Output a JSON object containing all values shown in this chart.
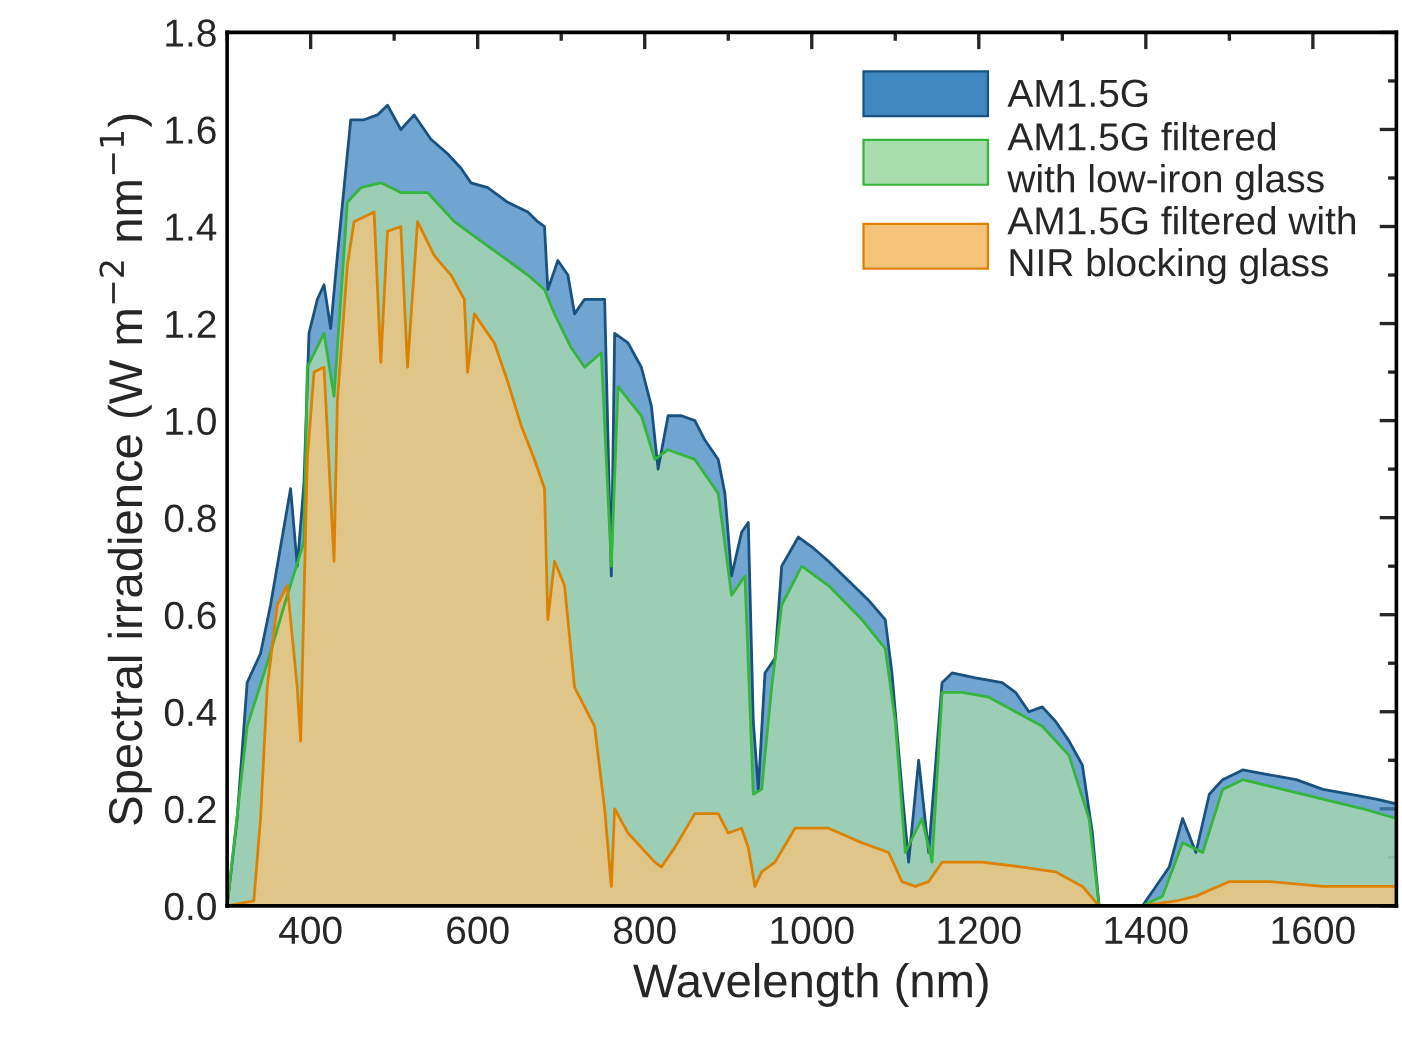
{
  "chart_data": {
    "type": "area",
    "xlabel": "Wavelength (nm)",
    "ylabel": "Spectral irradience (W m$^{−2}$ nm$^{−1}$)",
    "xlim": [
      300,
      1700
    ],
    "ylim": [
      0,
      1.8
    ],
    "xticks": [
      400,
      600,
      800,
      1000,
      1200,
      1400,
      1600
    ],
    "yticks": [
      {
        "value": 0,
        "label": "0.0"
      },
      {
        "value": 0.2,
        "label": "0.2"
      },
      {
        "value": 0.4,
        "label": "0.4"
      },
      {
        "value": 0.6,
        "label": "0.6"
      },
      {
        "value": 0.8,
        "label": "0.8"
      },
      {
        "value": 1.0,
        "label": "1.0"
      },
      {
        "value": 1.2,
        "label": "1.2"
      },
      {
        "value": 1.4,
        "label": "1.4"
      },
      {
        "value": 1.6,
        "label": "1.6"
      },
      {
        "value": 1.8,
        "label": "1.8"
      }
    ],
    "grid": false,
    "legend": "top right",
    "series": [
      {
        "name": "AM1.5G",
        "color": "#3f87c0",
        "x": [
          300,
          312,
          324,
          340,
          352,
          364,
          376,
          384,
          392,
          398,
          408,
          416,
          424,
          432,
          444,
          448,
          464,
          480,
          492,
          508,
          524,
          544,
          564,
          580,
          592,
          612,
          636,
          660,
          672,
          680,
          684,
          696,
          708,
          716,
          728,
          736,
          752,
          760,
          764,
          780,
          796,
          808,
          816,
          828,
          844,
          860,
          872,
          888,
          896,
          904,
          916,
          924,
          930,
          936,
          944,
          956,
          964,
          984,
          1000,
          1020,
          1044,
          1068,
          1088,
          1096,
          1108,
          1116,
          1128,
          1140,
          1156,
          1168,
          1196,
          1228,
          1244,
          1260,
          1276,
          1292,
          1308,
          1324,
          1336,
          1344,
          1396,
          1412,
          1428,
          1444,
          1460,
          1476,
          1492,
          1516,
          1548,
          1580,
          1612,
          1644,
          1676,
          1700
        ],
        "values": [
          0,
          0.18,
          0.46,
          0.52,
          0.62,
          0.74,
          0.86,
          0.7,
          0.87,
          1.18,
          1.25,
          1.28,
          1.19,
          1.34,
          1.55,
          1.62,
          1.62,
          1.63,
          1.65,
          1.6,
          1.63,
          1.58,
          1.55,
          1.52,
          1.49,
          1.48,
          1.45,
          1.43,
          1.41,
          1.4,
          1.27,
          1.33,
          1.3,
          1.22,
          1.25,
          1.25,
          1.25,
          0.68,
          1.18,
          1.16,
          1.11,
          1.03,
          0.9,
          1.01,
          1.01,
          1.0,
          0.96,
          0.92,
          0.85,
          0.68,
          0.77,
          0.79,
          0.38,
          0.24,
          0.48,
          0.51,
          0.7,
          0.76,
          0.74,
          0.71,
          0.67,
          0.63,
          0.59,
          0.48,
          0.24,
          0.09,
          0.3,
          0.11,
          0.46,
          0.48,
          0.47,
          0.46,
          0.44,
          0.4,
          0.41,
          0.38,
          0.34,
          0.29,
          0.15,
          0,
          0,
          0.04,
          0.08,
          0.18,
          0.11,
          0.23,
          0.26,
          0.28,
          0.27,
          0.26,
          0.24,
          0.23,
          0.22,
          0.21
        ]
      },
      {
        "name": "AM1.5G filtered\nwith low-iron glass",
        "color": "#a9dcac",
        "x": [
          300,
          324,
          348,
          372,
          392,
          396,
          416,
          428,
          436,
          444,
          460,
          484,
          508,
          540,
          572,
          604,
          636,
          660,
          680,
          692,
          712,
          728,
          748,
          760,
          768,
          796,
          812,
          828,
          860,
          888,
          904,
          920,
          930,
          940,
          952,
          964,
          988,
          1020,
          1060,
          1088,
          1100,
          1112,
          1132,
          1144,
          1156,
          1180,
          1212,
          1244,
          1276,
          1308,
          1332,
          1344,
          1396,
          1420,
          1444,
          1468,
          1492,
          1516,
          1564,
          1612,
          1660,
          1700
        ],
        "values": [
          0,
          0.37,
          0.5,
          0.64,
          0.75,
          1.11,
          1.18,
          1.05,
          1.25,
          1.45,
          1.48,
          1.49,
          1.47,
          1.47,
          1.41,
          1.37,
          1.33,
          1.3,
          1.27,
          1.22,
          1.15,
          1.11,
          1.14,
          0.7,
          1.07,
          1.01,
          0.92,
          0.94,
          0.92,
          0.85,
          0.64,
          0.68,
          0.23,
          0.24,
          0.45,
          0.62,
          0.7,
          0.66,
          0.59,
          0.53,
          0.38,
          0.11,
          0.18,
          0.09,
          0.44,
          0.44,
          0.43,
          0.4,
          0.37,
          0.31,
          0.18,
          0,
          0,
          0.02,
          0.13,
          0.11,
          0.24,
          0.26,
          0.24,
          0.22,
          0.2,
          0.18
        ]
      },
      {
        "name": "AM1.5G filtered with\nNIR blocking glass",
        "color": "#f5c27a",
        "x": [
          300,
          332,
          340,
          348,
          360,
          372,
          384,
          388,
          396,
          404,
          416,
          428,
          432,
          444,
          452,
          476,
          484,
          492,
          508,
          516,
          528,
          548,
          568,
          584,
          588,
          596,
          620,
          636,
          652,
          668,
          680,
          684,
          692,
          704,
          716,
          728,
          740,
          752,
          760,
          764,
          780,
          812,
          820,
          836,
          860,
          888,
          900,
          916,
          924,
          932,
          940,
          956,
          980,
          1020,
          1060,
          1092,
          1108,
          1124,
          1140,
          1156,
          1204,
          1252,
          1292,
          1324,
          1344,
          1396,
          1436,
          1460,
          1500,
          1548,
          1612,
          1700
        ],
        "values": [
          0,
          0.01,
          0.18,
          0.45,
          0.62,
          0.66,
          0.45,
          0.34,
          0.92,
          1.1,
          1.11,
          0.71,
          1.04,
          1.32,
          1.41,
          1.43,
          1.12,
          1.39,
          1.4,
          1.11,
          1.41,
          1.34,
          1.3,
          1.25,
          1.1,
          1.22,
          1.16,
          1.08,
          0.99,
          0.92,
          0.86,
          0.59,
          0.71,
          0.66,
          0.45,
          0.41,
          0.37,
          0.2,
          0.04,
          0.2,
          0.15,
          0.09,
          0.08,
          0.12,
          0.19,
          0.19,
          0.15,
          0.16,
          0.12,
          0.04,
          0.07,
          0.09,
          0.16,
          0.16,
          0.13,
          0.11,
          0.05,
          0.04,
          0.05,
          0.09,
          0.09,
          0.08,
          0.07,
          0.04,
          0,
          0,
          0.01,
          0.02,
          0.05,
          0.05,
          0.04,
          0.04
        ]
      }
    ]
  }
}
